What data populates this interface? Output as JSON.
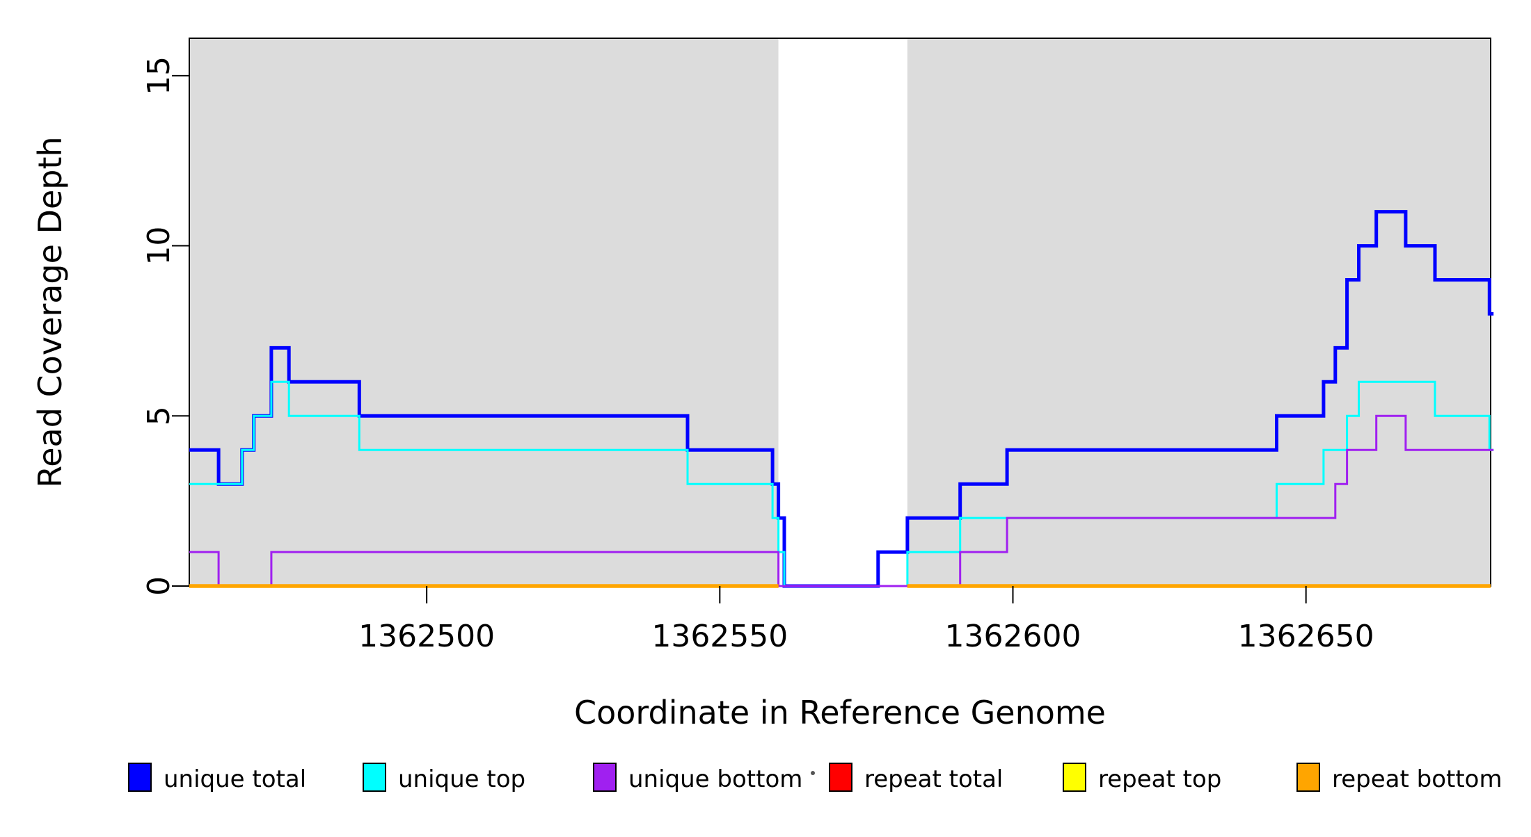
{
  "chart_data": {
    "type": "line",
    "subtype": "step",
    "title": "",
    "xlabel": "Coordinate in Reference Genome",
    "ylabel": "Read Coverage Depth",
    "xlim": [
      1362459.5,
      1362681.5
    ],
    "ylim": [
      0,
      16.1
    ],
    "grid": false,
    "x_ticks": [
      1362500,
      1362550,
      1362600,
      1362650
    ],
    "x_tick_labels": [
      "1362500",
      "1362550",
      "1362600",
      "1362650"
    ],
    "y_ticks": [
      0,
      5,
      10,
      15
    ],
    "y_tick_labels": [
      "0",
      "5",
      "10",
      "15"
    ],
    "shaded_region_color": "#dcdcdc",
    "shaded_regions": [
      {
        "x0": 1362459.5,
        "x1": 1362560
      },
      {
        "x0": 1362582,
        "x1": 1362681.5
      }
    ],
    "legend_position": "bottom",
    "series": [
      {
        "name": "unique total",
        "color": "#0000ff",
        "width": 5,
        "segments": [
          {
            "steps": [
              [
                1362459.5,
                4
              ],
              [
                1362464.5,
                3
              ],
              [
                1362468.5,
                4
              ],
              [
                1362470.5,
                5
              ],
              [
                1362473.5,
                7
              ],
              [
                1362476.5,
                6
              ],
              [
                1362488.5,
                5
              ],
              [
                1362544.5,
                4
              ],
              [
                1362559,
                3
              ],
              [
                1362560,
                2
              ],
              [
                1362561,
                0
              ],
              [
                1362577,
                1
              ],
              [
                1362582,
                2
              ],
              [
                1362591,
                3
              ],
              [
                1362599,
                4
              ],
              [
                1362645,
                5
              ],
              [
                1362653,
                6
              ],
              [
                1362655,
                7
              ],
              [
                1362657,
                9
              ],
              [
                1362659,
                10
              ],
              [
                1362662,
                11
              ],
              [
                1362667,
                10
              ],
              [
                1362672,
                9
              ],
              [
                1362681.3,
                8
              ]
            ],
            "end": 1362682
          }
        ]
      },
      {
        "name": "unique top",
        "color": "#00ffff",
        "width": 3,
        "segments": [
          {
            "steps": [
              [
                1362459.5,
                3
              ],
              [
                1362468.5,
                4
              ],
              [
                1362470.5,
                5
              ],
              [
                1362473.5,
                6
              ],
              [
                1362476.5,
                5
              ],
              [
                1362488.5,
                4
              ],
              [
                1362544.5,
                3
              ],
              [
                1362559,
                2
              ],
              [
                1362560,
                1
              ],
              [
                1362561,
                0
              ],
              [
                1362582,
                1
              ],
              [
                1362591,
                2
              ],
              [
                1362645,
                3
              ],
              [
                1362653,
                4
              ],
              [
                1362657,
                5
              ],
              [
                1362659,
                6
              ],
              [
                1362672,
                5
              ],
              [
                1362681.3,
                4
              ]
            ],
            "end": 1362682
          }
        ]
      },
      {
        "name": "unique bottom",
        "color": "#a020f0",
        "width": 3,
        "segments": [
          {
            "steps": [
              [
                1362459.5,
                1
              ],
              [
                1362464.5,
                0
              ],
              [
                1362473.5,
                1
              ],
              [
                1362560,
                0
              ],
              [
                1362591,
                1
              ],
              [
                1362599,
                2
              ],
              [
                1362655,
                3
              ],
              [
                1362657,
                4
              ],
              [
                1362662,
                5
              ],
              [
                1362667,
                4
              ]
            ],
            "end": 1362682
          }
        ]
      },
      {
        "name": "repeat total",
        "color": "#ff0000",
        "width": 5,
        "segments": [
          {
            "steps": [
              [
                1362459.5,
                0
              ]
            ],
            "end": 1362560
          },
          {
            "steps": [
              [
                1362582,
                0
              ]
            ],
            "end": 1362681.5
          }
        ]
      },
      {
        "name": "repeat top",
        "color": "#ffff00",
        "width": 3,
        "segments": [
          {
            "steps": [
              [
                1362459.5,
                0
              ]
            ],
            "end": 1362560
          },
          {
            "steps": [
              [
                1362582,
                0
              ]
            ],
            "end": 1362681.5
          }
        ]
      },
      {
        "name": "repeat bottom",
        "color": "#ffa500",
        "width": 5.5,
        "segments": [
          {
            "steps": [
              [
                1362459.5,
                0
              ]
            ],
            "end": 1362560
          },
          {
            "steps": [
              [
                1362582,
                0
              ]
            ],
            "end": 1362681.5
          }
        ]
      }
    ]
  }
}
